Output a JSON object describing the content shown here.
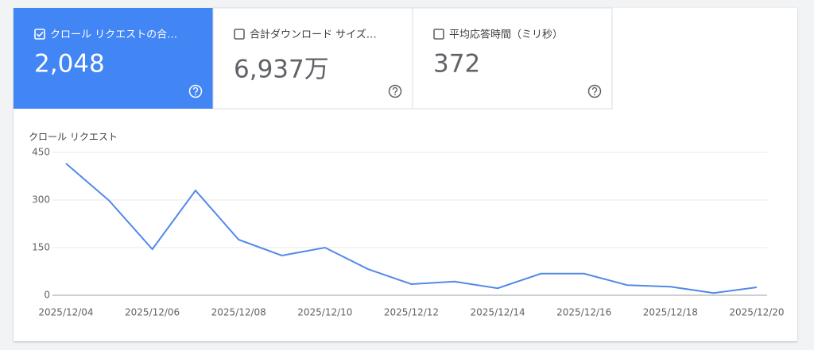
{
  "metrics": [
    {
      "label": "クロール リクエストの合…",
      "value": "2,048",
      "checked": true
    },
    {
      "label": "合計ダウンロード サイズ…",
      "value": "6,937万",
      "checked": false
    },
    {
      "label": "平均応答時間（ミリ秒）",
      "value": "372",
      "checked": false
    }
  ],
  "chart_data": {
    "type": "line",
    "y_label": "クロール リクエスト",
    "categories": [
      "2025/12/04",
      null,
      "2025/12/06",
      null,
      "2025/12/08",
      null,
      "2025/12/10",
      null,
      "2025/12/12",
      null,
      "2025/12/14",
      null,
      "2025/12/16",
      null,
      "2025/12/18",
      null,
      "2025/12/20"
    ],
    "series": [
      {
        "name": "クロール リクエスト",
        "color": "#5289e8",
        "values": [
          415,
          298,
          145,
          330,
          175,
          125,
          150,
          82,
          35,
          43,
          22,
          68,
          68,
          32,
          27,
          7,
          25
        ]
      }
    ],
    "ylim": [
      0,
      450
    ],
    "yticks": [
      0,
      150,
      300,
      450
    ],
    "grid": true
  }
}
